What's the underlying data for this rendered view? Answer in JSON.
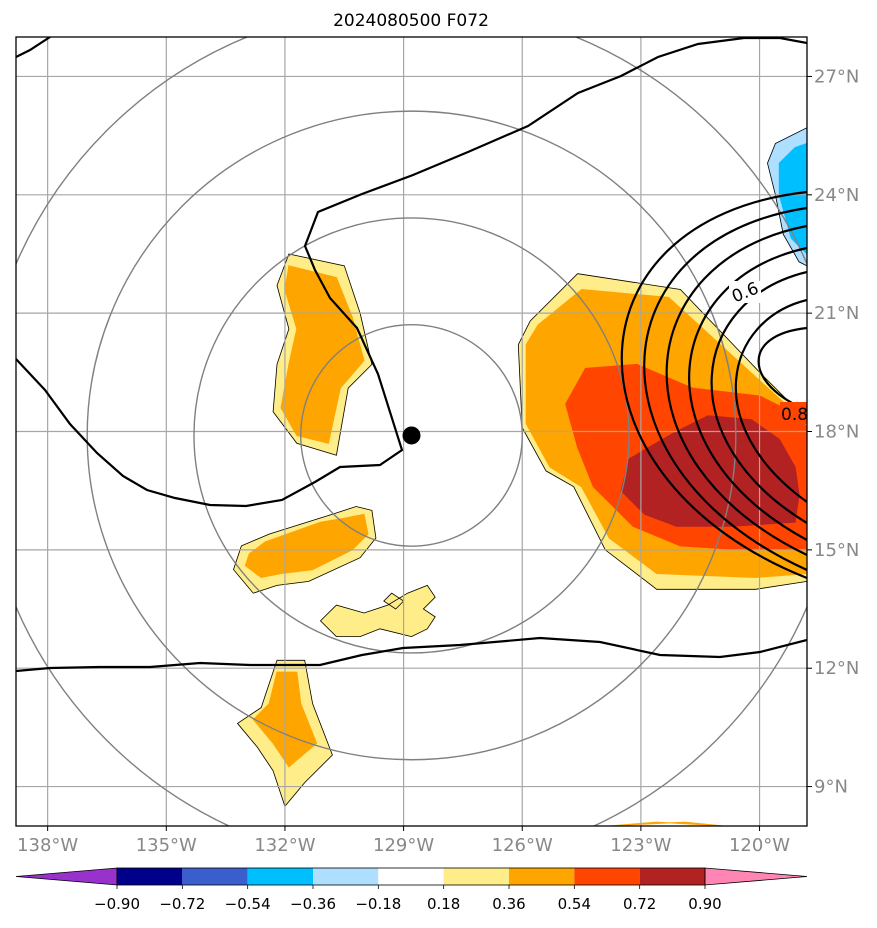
{
  "chart_data": {
    "type": "heatmap",
    "title": "2024080500 F072",
    "xlabel": "",
    "ylabel": "",
    "x_ticks": [
      "138°W",
      "135°W",
      "132°W",
      "129°W",
      "126°W",
      "123°W",
      "120°W"
    ],
    "x_tick_values": [
      -138,
      -135,
      -132,
      -129,
      -126,
      -123,
      -120
    ],
    "y_ticks": [
      "9°N",
      "12°N",
      "15°N",
      "18°N",
      "21°N",
      "24°N",
      "27°N"
    ],
    "y_tick_values": [
      9,
      12,
      15,
      18,
      21,
      24,
      27
    ],
    "xlim": [
      -138.8,
      -118.8
    ],
    "ylim": [
      8,
      28
    ],
    "grid": true,
    "tick_label_color": "#888888",
    "center_marker": {
      "lon": -128.8,
      "lat": 17.9
    },
    "range_rings_deg": [
      2.8,
      5.5,
      8.2,
      10.9
    ],
    "colorbar": {
      "ticks": [
        "−0.90",
        "−0.72",
        "−0.54",
        "−0.36",
        "−0.18",
        "0.18",
        "0.36",
        "0.54",
        "0.72",
        "0.90"
      ],
      "colors": [
        "#9932cc",
        "#00008b",
        "#3a5fcd",
        "#00bfff",
        "#afdfff",
        "#ffffff",
        "#ffed8a",
        "#ffa500",
        "#ff4500",
        "#b22222",
        "#ff86b4"
      ],
      "extend": "both"
    },
    "contour_labels": [
      "0.6",
      "0.8"
    ],
    "shaded_regions": [
      {
        "level": 0.18,
        "color": "#ffed8a",
        "outline": [
          [
            -131.9,
            22.5
          ],
          [
            -130.5,
            22.2
          ],
          [
            -130.1,
            21.0
          ],
          [
            -129.8,
            19.7
          ],
          [
            -130.4,
            19.1
          ],
          [
            -130.7,
            17.4
          ],
          [
            -131.7,
            17.7
          ],
          [
            -132.3,
            18.5
          ],
          [
            -132.2,
            19.7
          ],
          [
            -131.9,
            20.6
          ],
          [
            -132.2,
            21.7
          ]
        ]
      },
      {
        "level": 0.36,
        "color": "#ffa500",
        "outline": [
          [
            -131.9,
            22.2
          ],
          [
            -130.7,
            21.9
          ],
          [
            -130.3,
            20.9
          ],
          [
            -130.0,
            19.8
          ],
          [
            -130.6,
            19.1
          ],
          [
            -130.9,
            17.7
          ],
          [
            -131.7,
            17.9
          ],
          [
            -132.1,
            18.6
          ],
          [
            -131.9,
            19.7
          ],
          [
            -131.7,
            20.6
          ],
          [
            -132.0,
            21.6
          ]
        ]
      },
      {
        "level": 0.18,
        "color": "#ffed8a",
        "outline": [
          [
            -130.7,
            12.8
          ],
          [
            -130.1,
            12.8
          ],
          [
            -129.6,
            13.0
          ],
          [
            -128.8,
            12.8
          ],
          [
            -128.4,
            13.0
          ],
          [
            -128.2,
            13.3
          ],
          [
            -128.5,
            13.5
          ],
          [
            -128.2,
            13.8
          ],
          [
            -128.4,
            14.1
          ],
          [
            -128.9,
            13.9
          ],
          [
            -129.4,
            13.6
          ],
          [
            -130.0,
            13.4
          ],
          [
            -130.7,
            13.6
          ],
          [
            -131.1,
            13.2
          ]
        ]
      },
      {
        "level": 0.18,
        "color": "#ffed8a",
        "outline": [
          [
            -129.2,
            13.5
          ],
          [
            -129.0,
            13.7
          ],
          [
            -129.3,
            13.9
          ],
          [
            -129.5,
            13.7
          ]
        ]
      },
      {
        "level": 0.18,
        "color": "#ffed8a",
        "outline": [
          [
            -132.2,
            14.1
          ],
          [
            -131.4,
            14.2
          ],
          [
            -130.1,
            14.8
          ],
          [
            -129.7,
            15.3
          ],
          [
            -129.8,
            16.0
          ],
          [
            -130.2,
            16.1
          ],
          [
            -130.8,
            15.9
          ],
          [
            -132.4,
            15.4
          ],
          [
            -133.1,
            15.1
          ],
          [
            -133.3,
            14.5
          ],
          [
            -132.8,
            13.9
          ]
        ]
      },
      {
        "level": 0.36,
        "color": "#ffa500",
        "outline": [
          [
            -132.1,
            14.4
          ],
          [
            -131.3,
            14.5
          ],
          [
            -130.3,
            15.0
          ],
          [
            -129.9,
            15.4
          ],
          [
            -130.0,
            15.9
          ],
          [
            -130.5,
            15.8
          ],
          [
            -131.1,
            15.7
          ],
          [
            -132.5,
            15.2
          ],
          [
            -132.9,
            14.9
          ],
          [
            -133.0,
            14.6
          ],
          [
            -132.6,
            14.3
          ]
        ]
      },
      {
        "level": 0.18,
        "color": "#ffed8a",
        "outline": [
          [
            -132.2,
            12.2
          ],
          [
            -131.5,
            12.2
          ],
          [
            -131.3,
            11.1
          ],
          [
            -130.8,
            9.8
          ],
          [
            -131.5,
            9.1
          ],
          [
            -132.0,
            8.5
          ],
          [
            -132.3,
            9.4
          ],
          [
            -132.7,
            10.0
          ],
          [
            -133.2,
            10.6
          ],
          [
            -132.6,
            11.0
          ]
        ]
      },
      {
        "level": 0.36,
        "color": "#ffa500",
        "outline": [
          [
            -132.2,
            11.9
          ],
          [
            -131.7,
            11.9
          ],
          [
            -131.6,
            11.1
          ],
          [
            -131.2,
            10.1
          ],
          [
            -131.9,
            9.5
          ],
          [
            -132.3,
            10.1
          ],
          [
            -132.8,
            10.7
          ],
          [
            -132.4,
            11.1
          ]
        ]
      },
      {
        "level": 0.18,
        "color": "#ffed8a",
        "outline": [
          [
            -124.6,
            22.0
          ],
          [
            -122.0,
            21.6
          ],
          [
            -119.9,
            19.4
          ],
          [
            -118.8,
            18.3
          ],
          [
            -118.8,
            14.2
          ],
          [
            -120.1,
            14.0
          ],
          [
            -122.6,
            14.0
          ],
          [
            -123.9,
            15.0
          ],
          [
            -124.7,
            16.6
          ],
          [
            -125.4,
            17.0
          ],
          [
            -126.0,
            18.1
          ],
          [
            -126.1,
            20.2
          ],
          [
            -125.8,
            20.8
          ]
        ]
      },
      {
        "level": 0.36,
        "color": "#ffa500",
        "outline": [
          [
            -124.5,
            21.6
          ],
          [
            -122.3,
            21.4
          ],
          [
            -119.9,
            19.2
          ],
          [
            -118.8,
            18.2
          ],
          [
            -118.8,
            14.4
          ],
          [
            -120.1,
            14.3
          ],
          [
            -122.6,
            14.4
          ],
          [
            -123.8,
            15.3
          ],
          [
            -124.5,
            16.6
          ],
          [
            -125.3,
            17.1
          ],
          [
            -125.9,
            18.2
          ],
          [
            -125.9,
            20.2
          ],
          [
            -125.6,
            20.7
          ]
        ]
      },
      {
        "level": 0.54,
        "color": "#ff4500",
        "outline": [
          [
            -124.4,
            19.6
          ],
          [
            -123.1,
            19.7
          ],
          [
            -121.7,
            19.1
          ],
          [
            -120.0,
            18.9
          ],
          [
            -119.0,
            18.4
          ],
          [
            -118.8,
            18.1
          ],
          [
            -118.8,
            15.0
          ],
          [
            -120.4,
            15.0
          ],
          [
            -122.0,
            15.1
          ],
          [
            -123.2,
            15.6
          ],
          [
            -124.2,
            16.6
          ],
          [
            -124.6,
            17.6
          ],
          [
            -124.9,
            18.7
          ]
        ]
      },
      {
        "level": 0.72,
        "color": "#b22222",
        "outline": [
          [
            -121.3,
            18.4
          ],
          [
            -120.2,
            18.3
          ],
          [
            -119.5,
            17.8
          ],
          [
            -119.1,
            17.1
          ],
          [
            -119.0,
            16.4
          ],
          [
            -119.1,
            15.7
          ],
          [
            -120.7,
            15.6
          ],
          [
            -122.1,
            15.6
          ],
          [
            -122.9,
            15.9
          ],
          [
            -123.5,
            16.5
          ],
          [
            -123.3,
            17.3
          ],
          [
            -122.8,
            17.6
          ],
          [
            -122.1,
            18.0
          ]
        ]
      },
      {
        "level": -0.18,
        "color": "#afdfff",
        "outline": [
          [
            -118.8,
            25.7
          ],
          [
            -119.6,
            25.3
          ],
          [
            -119.8,
            24.8
          ],
          [
            -119.6,
            24.0
          ],
          [
            -119.4,
            23.0
          ],
          [
            -119.0,
            22.3
          ],
          [
            -118.8,
            22.2
          ]
        ]
      },
      {
        "level": -0.36,
        "color": "#00bfff",
        "outline": [
          [
            -118.8,
            25.3
          ],
          [
            -119.1,
            25.2
          ],
          [
            -119.5,
            24.8
          ],
          [
            -119.5,
            24.0
          ],
          [
            -119.2,
            22.9
          ],
          [
            -118.8,
            22.5
          ]
        ]
      },
      {
        "level": 0.36,
        "color": "#ffa500",
        "outline": [
          [
            -121.9,
            8.1
          ],
          [
            -120.9,
            8.0
          ],
          [
            -122.6,
            8.1
          ],
          [
            -123.8,
            8.0
          ]
        ]
      }
    ]
  }
}
